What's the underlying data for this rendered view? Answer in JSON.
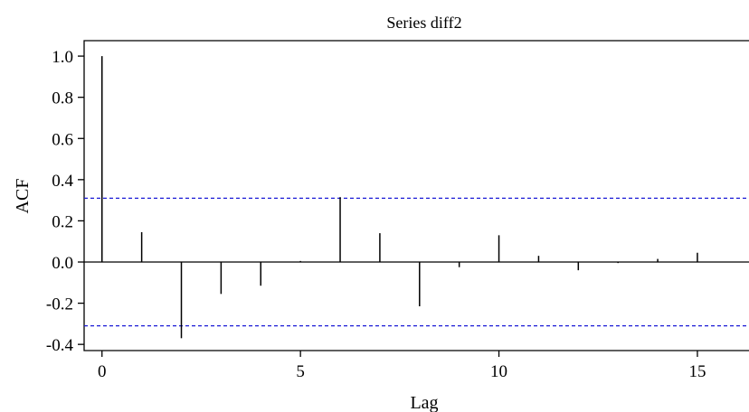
{
  "chart_data": {
    "type": "bar",
    "title": "Series diff2",
    "xlabel": "Lag",
    "ylabel": "ACF",
    "x": [
      0,
      1,
      2,
      3,
      4,
      5,
      6,
      7,
      8,
      9,
      10,
      11,
      12,
      13,
      14,
      15
    ],
    "values": [
      1.0,
      0.145,
      -0.37,
      -0.155,
      -0.115,
      0.005,
      0.315,
      0.14,
      -0.215,
      -0.025,
      0.13,
      0.03,
      -0.04,
      -0.005,
      0.015,
      0.045
    ],
    "confidence_bounds": [
      0.31,
      -0.31
    ],
    "xlim": [
      -0.45,
      16.3
    ],
    "ylim": [
      -0.43,
      1.075
    ],
    "x_ticks": [
      0,
      5,
      10,
      15
    ],
    "x_tick_labels": [
      "0",
      "5",
      "10",
      "15"
    ],
    "y_ticks": [
      -0.4,
      -0.2,
      0.0,
      0.2,
      0.4,
      0.6,
      0.8,
      1.0
    ],
    "y_tick_labels": [
      "-0.4",
      "-0.2",
      "0.0",
      "0.2",
      "0.4",
      "0.6",
      "0.8",
      "1.0"
    ],
    "grid": false,
    "colors": {
      "spike": "#000000",
      "bound": "#1a1ad6",
      "axis": "#000000"
    }
  }
}
